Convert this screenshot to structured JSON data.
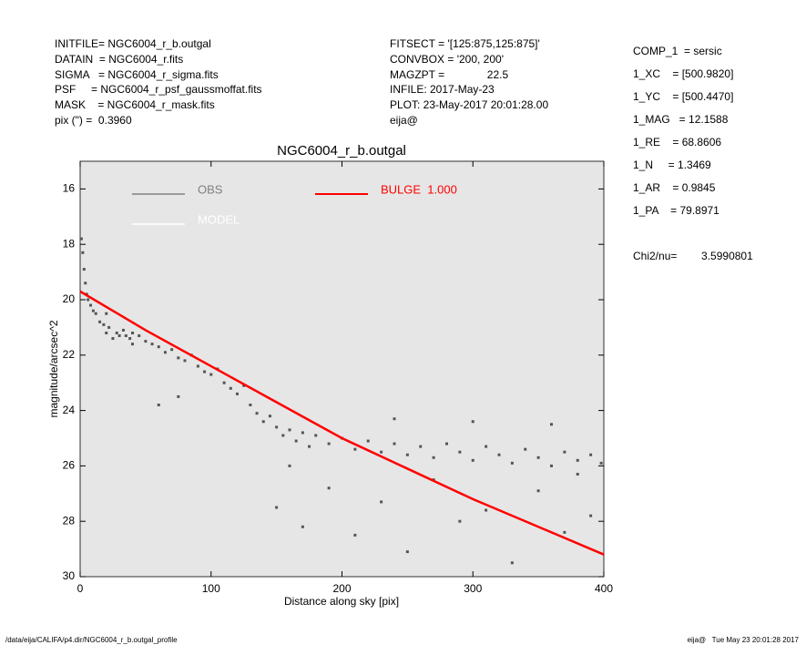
{
  "header": {
    "left": [
      "INITFILE= NGC6004_r_b.outgal",
      "DATAIN  = NGC6004_r.fits",
      "SIGMA   = NGC6004_r_sigma.fits",
      "PSF     = NGC6004_r_psf_gaussmoffat.fits",
      "MASK    = NGC6004_r_mask.fits",
      "pix (\") =  0.3960"
    ],
    "middle": [
      "FITSECT = '[125:875,125:875]'",
      "CONVBOX = '200, 200'",
      "MAGZPT =              22.5",
      "INFILE: 2017-May-23",
      "PLOT: 23-May-2017 20:01:28.00",
      "eija@"
    ],
    "right": [
      "COMP_1  = sersic",
      "1_XC    = [500.9820]",
      "1_YC    = [500.4470]",
      "1_MAG   = 12.1588",
      "1_RE    = 68.8606",
      "1_N     = 1.3469",
      "1_AR    = 0.9845",
      "1_PA    = 79.8971"
    ],
    "chi2": "Chi2/nu=        3.5990801"
  },
  "footer": {
    "left": "/data/eija/CALIFA/p4.dir/NGC6004_r_b.outgal_profile",
    "right": "eija@   Tue May 23 20:01:28 2017"
  },
  "chart_data": {
    "type": "scatter",
    "title": "NGC6004_r_b.outgal",
    "x_label": "Distance along sky [pix]",
    "y_label": "magnitude/arcsec^2",
    "xlim": [
      0,
      400
    ],
    "xticks": [
      0,
      100,
      200,
      300,
      400
    ],
    "ylim": [
      15,
      30
    ],
    "yticks": [
      16,
      18,
      20,
      22,
      24,
      26,
      28,
      30
    ],
    "y_inverted": true,
    "background": "#e6e6e6",
    "legend": [
      {
        "name": "OBS",
        "color": "#808080"
      },
      {
        "name": "MODEL",
        "color": "#ffffff"
      },
      {
        "name": "BULGE  1.000",
        "color": "#ff0000"
      }
    ],
    "series": [
      {
        "kind": "scatter",
        "color": "#555555",
        "x": [
          1,
          2,
          3,
          4,
          5,
          6,
          8,
          10,
          12,
          15,
          18,
          20,
          22,
          25,
          28,
          30,
          33,
          35,
          38,
          40,
          45,
          50,
          55,
          60,
          65,
          70,
          75,
          80,
          85,
          90,
          95,
          100,
          105,
          110,
          115,
          120,
          125,
          130,
          135,
          140,
          145,
          150,
          155,
          160,
          165,
          170,
          175,
          180,
          190,
          200,
          210,
          220,
          230,
          240,
          250,
          260,
          270,
          280,
          290,
          300,
          310,
          320,
          330,
          340,
          350,
          360,
          370,
          380,
          390,
          398,
          150,
          170,
          190,
          210,
          230,
          250,
          270,
          290,
          310,
          330,
          350,
          370,
          390,
          160,
          240,
          300,
          360,
          380,
          60,
          75,
          40,
          20
        ],
        "y": [
          17.8,
          18.3,
          18.9,
          19.4,
          19.8,
          20.0,
          20.2,
          20.4,
          20.5,
          20.8,
          20.9,
          21.2,
          21.0,
          21.4,
          21.2,
          21.3,
          21.1,
          21.3,
          21.4,
          21.2,
          21.3,
          21.5,
          21.6,
          21.7,
          21.9,
          21.8,
          22.1,
          22.2,
          22.0,
          22.4,
          22.6,
          22.7,
          22.5,
          23.0,
          23.2,
          23.4,
          23.1,
          23.8,
          24.1,
          24.4,
          24.2,
          24.6,
          24.9,
          24.7,
          25.1,
          24.8,
          25.3,
          24.9,
          25.2,
          25.0,
          25.4,
          25.1,
          25.5,
          25.2,
          25.6,
          25.3,
          25.7,
          25.2,
          25.5,
          25.8,
          25.3,
          25.6,
          25.9,
          25.4,
          25.7,
          26.0,
          25.5,
          25.8,
          25.6,
          25.9,
          27.5,
          28.2,
          26.8,
          28.5,
          27.3,
          29.1,
          26.5,
          28.0,
          27.6,
          29.5,
          26.9,
          28.4,
          27.8,
          26.0,
          24.3,
          24.4,
          24.5,
          26.3,
          23.8,
          23.5,
          21.6,
          20.5
        ]
      },
      {
        "kind": "line",
        "color": "#ff0000",
        "x": [
          0,
          50,
          100,
          150,
          200,
          250,
          300,
          350,
          400
        ],
        "y": [
          19.7,
          21.1,
          22.4,
          23.7,
          25.0,
          26.1,
          27.2,
          28.2,
          29.2
        ]
      }
    ]
  }
}
